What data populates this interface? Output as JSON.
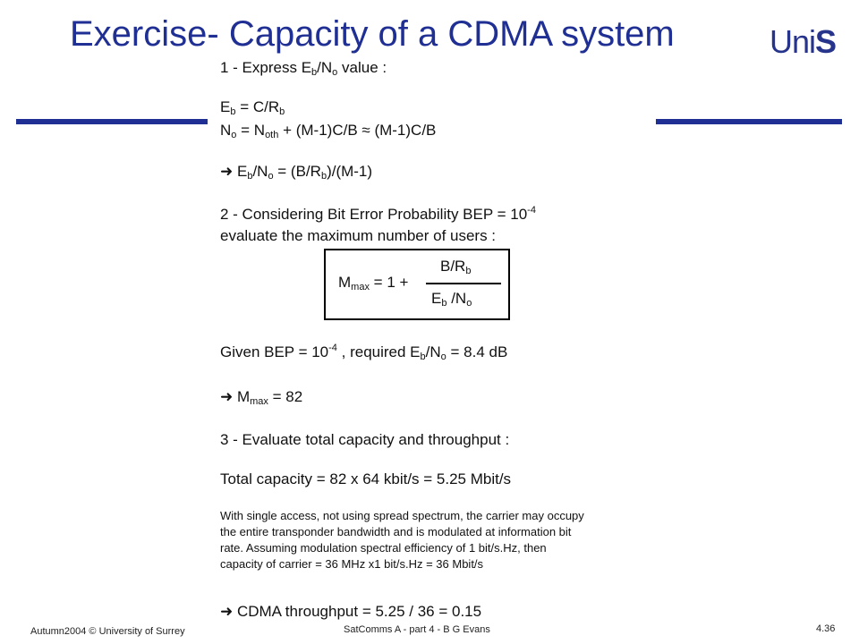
{
  "slide": {
    "title": "Exercise- Capacity of a CDMA system",
    "logo": {
      "part1": "Uni",
      "part2": "S"
    },
    "accent_color": "#1f2f93"
  },
  "content": {
    "l1": {
      "a": "1 - Express E",
      "b": "b",
      "c": "/N",
      "d": "o",
      "e": " value :"
    },
    "l2": {
      "a": "E",
      "b": "b",
      "c": " = C/R",
      "d": "b"
    },
    "l3": {
      "a": "N",
      "b": "o",
      "c": " = N",
      "d": "oth",
      "e": " + (M-1)C/B ≈ (M-1)C/B"
    },
    "l4": {
      "a": "➜ E",
      "b": "b",
      "c": "/N",
      "d": "o",
      "e": " = (B/R",
      "f": "b",
      "g": ")/(M-1)"
    },
    "l5": {
      "a": "2 - Considering Bit Error Probability BEP = 10",
      "b": "-4"
    },
    "l6": "evaluate the maximum number of users :",
    "formula": {
      "lhs_a": "M",
      "lhs_b": "max",
      "lhs_c": " = 1 +",
      "num_a": "B/R",
      "num_b": "b",
      "den_a": "E",
      "den_b": "b",
      "den_c": " /N",
      "den_d": "o"
    },
    "l7": {
      "a": "Given BEP = 10",
      "b": "-4",
      "c": " , required E",
      "d": "b",
      "e": "/N",
      "f": "o",
      "g": " = 8.4 dB"
    },
    "l8": {
      "a": "➜ M",
      "b": "max",
      "c": " = 82"
    },
    "l9": "3 - Evaluate total capacity and throughput :",
    "l10": "Total capacity = 82 x 64 kbit/s = 5.25 Mbit/s",
    "para": [
      "With single access, not using spread spectrum, the carrier may occupy",
      "the entire transponder bandwidth and is modulated at information bit",
      "rate. Assuming modulation spectral efficiency of 1 bit/s.Hz, then",
      "capacity of carrier = 36 MHz x1 bit/s.Hz = 36 Mbit/s"
    ],
    "l11": "➜ CDMA throughput = 5.25 / 36 = 0.15"
  },
  "footer": {
    "left": "Autumn2004 © University of Surrey",
    "center": "SatComms A - part 4 - B G Evans",
    "right": "4.36"
  }
}
